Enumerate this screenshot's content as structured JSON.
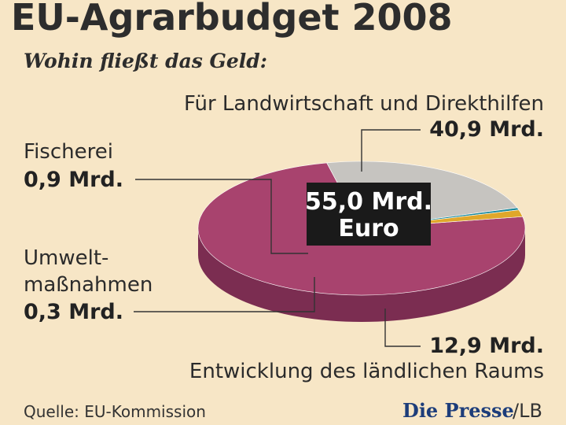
{
  "header": {
    "title": "EU-Agrarbudget 2008",
    "subtitle": "Wohin fließt das Geld:"
  },
  "chart_data": {
    "type": "pie",
    "title": "EU-Agrarbudget 2008",
    "subtitle": "Wohin fließt das Geld:",
    "total_label_line1": "55,0 Mrd.",
    "total_label_line2": "Euro",
    "total": 55.0,
    "unit": "Mrd. Euro",
    "slices": [
      {
        "id": "landwirtschaft",
        "label": "Für Landwirtschaft und Direkthilfen",
        "value": 40.9,
        "value_label": "40,9 Mrd.",
        "color": "#a8436e",
        "side_color": "#7b2d51"
      },
      {
        "id": "laendlich",
        "label": "Entwicklung des ländlichen Raums",
        "value": 12.9,
        "value_label": "12,9 Mrd.",
        "color": "#c6c4c0",
        "side_color": "#a4a29f"
      },
      {
        "id": "umwelt",
        "label_line1": "Umwelt-",
        "label_line2": "maßnahmen",
        "value": 0.3,
        "value_label": "0,3 Mrd.",
        "color": "#1c8a9c",
        "side_color": "#126573"
      },
      {
        "id": "fischerei",
        "label": "Fischerei",
        "value": 0.9,
        "value_label": "0,9 Mrd.",
        "color": "#e0a72a",
        "side_color": "#b78215"
      }
    ]
  },
  "footer": {
    "source": "Quelle: EU-Kommission",
    "brand": "Die Presse",
    "brand_suffix": "/LB"
  },
  "colors": {
    "background": "#f7e6c6",
    "center_box": "#1a1a1a"
  }
}
